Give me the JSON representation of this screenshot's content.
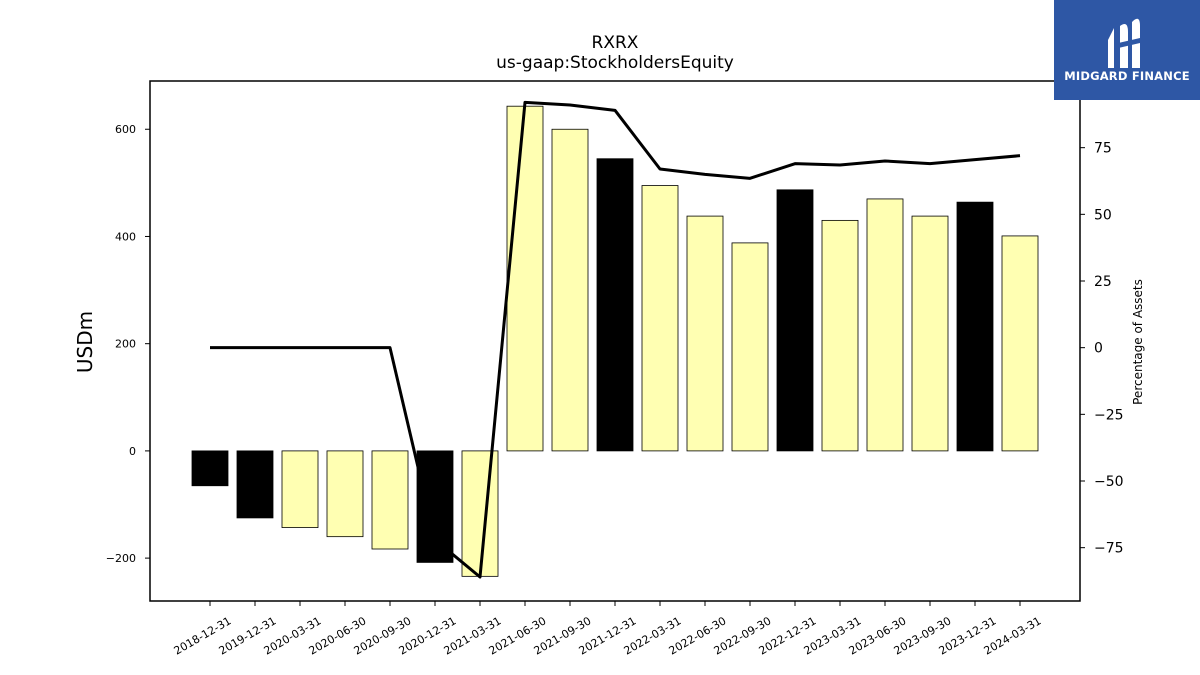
{
  "logo": {
    "text": "MIDGARD FINANCE",
    "bg_color": "#2e57a5"
  },
  "colors": {
    "bar_primary": "#000000",
    "bar_secondary": "#ffffb2",
    "line": "#000000"
  },
  "chart_data": {
    "type": "bar",
    "title": "RXRX",
    "subtitle": "us-gaap:StockholdersEquity",
    "ylabel": "USDm",
    "y2label": "Percentage of Assets",
    "ylim": [
      -280,
      690
    ],
    "y2lim": [
      -95,
      100
    ],
    "yticks": [
      -200,
      0,
      200,
      400,
      600
    ],
    "y2ticks": [
      -75,
      -50,
      -25,
      0,
      25,
      50,
      75
    ],
    "categories": [
      "2018-12-31",
      "2019-12-31",
      "2020-03-31",
      "2020-06-30",
      "2020-09-30",
      "2020-12-31",
      "2021-03-31",
      "2021-06-30",
      "2021-09-30",
      "2021-12-31",
      "2022-03-31",
      "2022-06-30",
      "2022-09-30",
      "2022-12-31",
      "2023-03-31",
      "2023-06-30",
      "2023-09-30",
      "2023-12-31",
      "2024-03-31"
    ],
    "series": [
      {
        "type": "bar",
        "values": [
          -65,
          -125,
          -143,
          -160,
          -183,
          -208,
          -234,
          643,
          600,
          545,
          495,
          438,
          388,
          487,
          430,
          470,
          438,
          464,
          401
        ],
        "bar_style": [
          "primary",
          "primary",
          "secondary",
          "secondary",
          "secondary",
          "primary",
          "secondary",
          "secondary",
          "secondary",
          "primary",
          "secondary",
          "secondary",
          "secondary",
          "primary",
          "secondary",
          "secondary",
          "secondary",
          "primary",
          "secondary"
        ]
      },
      {
        "type": "line",
        "axis": "right",
        "values": [
          0,
          0,
          0,
          0,
          0,
          -72,
          -86,
          92,
          91,
          89,
          67,
          65,
          63.5,
          69,
          68.5,
          70,
          69,
          70.5,
          72
        ]
      }
    ]
  }
}
